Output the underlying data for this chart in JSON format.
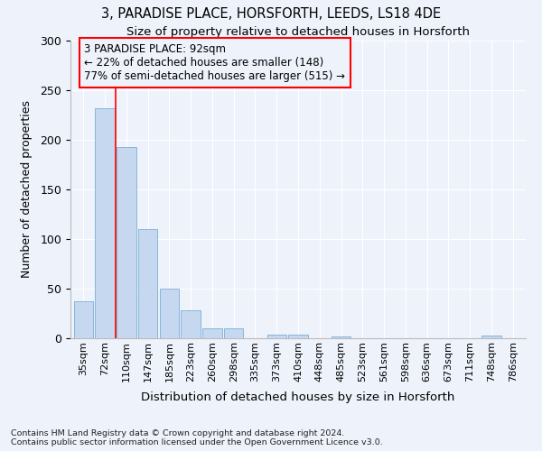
{
  "title1": "3, PARADISE PLACE, HORSFORTH, LEEDS, LS18 4DE",
  "title2": "Size of property relative to detached houses in Horsforth",
  "xlabel": "Distribution of detached houses by size in Horsforth",
  "ylabel": "Number of detached properties",
  "categories": [
    "35sqm",
    "72sqm",
    "110sqm",
    "147sqm",
    "185sqm",
    "223sqm",
    "260sqm",
    "298sqm",
    "335sqm",
    "373sqm",
    "410sqm",
    "448sqm",
    "485sqm",
    "523sqm",
    "561sqm",
    "598sqm",
    "636sqm",
    "673sqm",
    "711sqm",
    "748sqm",
    "786sqm"
  ],
  "values": [
    37,
    232,
    193,
    110,
    50,
    28,
    10,
    10,
    0,
    4,
    4,
    0,
    2,
    0,
    0,
    0,
    0,
    0,
    0,
    3,
    0
  ],
  "bar_color": "#c5d8f0",
  "bar_edge_color": "#7aafd4",
  "redline_x": 1.5,
  "annotation_line1": "3 PARADISE PLACE: 92sqm",
  "annotation_line2": "← 22% of detached houses are smaller (148)",
  "annotation_line3": "77% of semi-detached houses are larger (515) →",
  "ylim": [
    0,
    300
  ],
  "yticks": [
    0,
    50,
    100,
    150,
    200,
    250,
    300
  ],
  "footer1": "Contains HM Land Registry data © Crown copyright and database right 2024.",
  "footer2": "Contains public sector information licensed under the Open Government Licence v3.0.",
  "bg_color": "#eef2fb",
  "grid_color": "#ffffff"
}
